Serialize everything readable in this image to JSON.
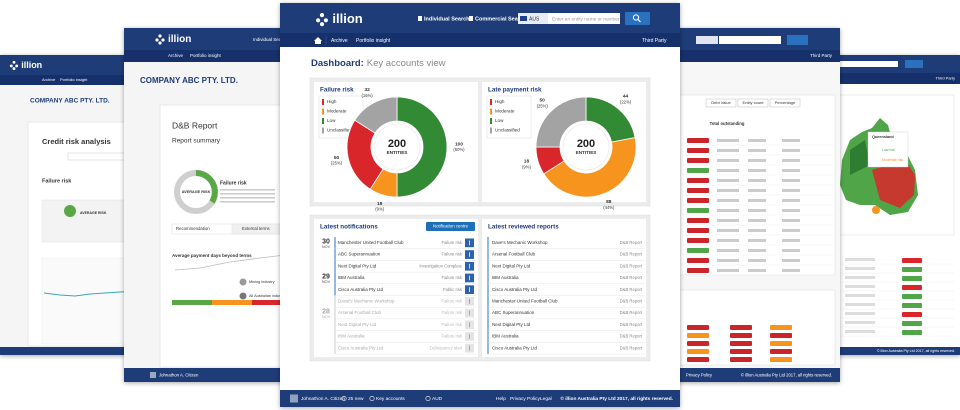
{
  "front": {
    "header": {
      "logo": "illion",
      "nav": [
        "Individual Search",
        "Commercial Search"
      ],
      "country": "AUS",
      "search_placeholder": "Enter an entity name or number"
    },
    "subnav": {
      "items": [
        "Archive",
        "Portfolio insight"
      ],
      "right": "Third Party"
    },
    "title": {
      "prefix": "Dashboard:",
      "text": "Key accounts view"
    },
    "donuts": [
      {
        "title": "Failure risk",
        "center_value": 200,
        "center_label": "ENTITIES",
        "segments": [
          {
            "name": "High",
            "color": "#d9262b",
            "value": 50,
            "percent_label": "(25%)"
          },
          {
            "name": "Moderate",
            "color": "#f7941d",
            "value": 18,
            "percent_label": "(9%)"
          },
          {
            "name": "Low",
            "color": "#338a35",
            "value": 100,
            "percent_label": "(50%)"
          },
          {
            "name": "Unclassified",
            "color": "#a3a3a3",
            "value": 32,
            "percent_label": "(16%)"
          }
        ]
      },
      {
        "title": "Late payment risk",
        "center_value": 200,
        "center_label": "ENTITIES",
        "segments": [
          {
            "name": "High",
            "color": "#d9262b",
            "value": 18,
            "percent_label": "(9%)"
          },
          {
            "name": "Moderate",
            "color": "#f7941d",
            "value": 88,
            "percent_label": "(44%)"
          },
          {
            "name": "Low",
            "color": "#338a35",
            "value": 44,
            "percent_label": "(22%)"
          },
          {
            "name": "Unclassified",
            "color": "#a3a3a3",
            "value": 50,
            "percent_label": "(25%)"
          }
        ]
      }
    ],
    "notifications": {
      "title": "Latest notifications",
      "button": "Notification centre",
      "groups": [
        {
          "day": "30",
          "month": "NOV",
          "items": [
            {
              "name": "Manchester United Football Club",
              "type": "Failure risk",
              "unread": true
            },
            {
              "name": "ABC Superannuation",
              "type": "Failure risk",
              "unread": true
            },
            {
              "name": "Next Digital Pty Ltd",
              "type": "Investigation Complete",
              "unread": true
            }
          ]
        },
        {
          "day": "29",
          "month": "NOV",
          "items": [
            {
              "name": "IBM Australia",
              "type": "Failure risk",
              "unread": true
            },
            {
              "name": "Cisco Australia Pty Ltd",
              "type": "Public risk",
              "unread": true
            },
            {
              "name": "David's Mechanic Workshop",
              "type": "Failure risk",
              "unread": false
            }
          ]
        },
        {
          "day": "28",
          "month": "NOV",
          "items": [
            {
              "name": "Arsenal Football Club",
              "type": "Failure risk",
              "unread": false
            },
            {
              "name": "Next Digital Pty Ltd",
              "type": "Failure risk",
              "unread": false
            },
            {
              "name": "IBM Australia",
              "type": "Failure risk",
              "unread": false
            },
            {
              "name": "Cisco Australia Pty Ltd",
              "type": "Delinquency alert",
              "unread": false
            }
          ]
        }
      ]
    },
    "reports": {
      "title": "Latest reviewed reports",
      "items": [
        {
          "name": "Dave's Mechanic Workshop",
          "type": "D&B Report",
          "unread": true
        },
        {
          "name": "Arsenal Football Club",
          "type": "D&B Report",
          "unread": true
        },
        {
          "name": "Next Digital Pty Ltd",
          "type": "D&B Report",
          "unread": true
        },
        {
          "name": "IBM Australia",
          "type": "D&B Report",
          "unread": true
        },
        {
          "name": "Cisco Australia Pty Ltd",
          "type": "D&B Report",
          "unread": true
        },
        {
          "name": "Manchester United Football Club",
          "type": "D&B Report",
          "unread": true
        },
        {
          "name": "ABC Superannuation",
          "type": "D&B Report",
          "unread": true
        },
        {
          "name": "Next Digital Pty Ltd",
          "type": "D&B Report",
          "unread": true
        },
        {
          "name": "IBM Australia",
          "type": "D&B Report",
          "unread": true
        },
        {
          "name": "Cisco Australia Pty Ltd",
          "type": "D&B Report",
          "unread": true
        }
      ]
    },
    "footer": {
      "user": "Johnathon A. Citizen",
      "items": [
        "25 new",
        "Key accounts",
        "AUD"
      ],
      "links": [
        "Help",
        "Privacy Policy",
        "Legal"
      ],
      "copyright": "© illion Australia Pty Ltd 2017, all rights reserved."
    }
  },
  "back_left": {
    "logo": "illion",
    "nav": [
      "Archive",
      "Portfolio insight"
    ],
    "company": "COMPANY ABC PTY. LTD.",
    "heading": "Credit risk analysis",
    "section": "Failure risk",
    "risk": "AVERAGE RISK"
  },
  "back_left2": {
    "logo": "illion",
    "nav": "Individual Search",
    "subnav": [
      "Archive",
      "Portfolio insight"
    ],
    "company": "COMPANY ABC PTY. LTD.",
    "report": "D&B Report",
    "summary": "Report summary",
    "risk": "AVERAGE RISK",
    "risk_title": "Failure risk",
    "tabs": [
      "Recommendation",
      "External terms"
    ],
    "chart_title": "Average payment days beyond terms",
    "legend": [
      "Mining industry",
      "All Australian industry"
    ],
    "user": "Johnathon A. Citizen"
  },
  "back_right": {
    "subnav_right": "Third Party",
    "buttons": [
      "Debt Value",
      "Entity count",
      "Percentage"
    ],
    "column": "Total outstanding",
    "footer_link": "Privacy Policy",
    "copyright": "© illion Australia Pty Ltd 2017, all rights reserved."
  },
  "back_right2": {
    "subnav_right": "Third Party",
    "map_labels": [
      "Queensland",
      "Low risk",
      "Moderate risk"
    ],
    "copyright": "© illion Australia Pty Ltd 2017, all rights reserved."
  }
}
